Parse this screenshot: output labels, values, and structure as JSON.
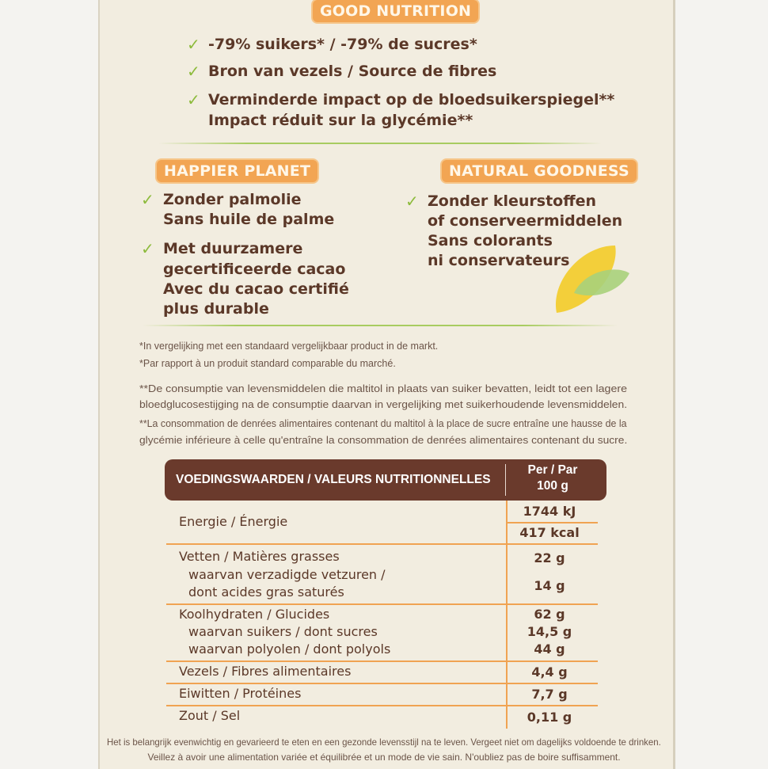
{
  "good_nutrition": {
    "title": "GOOD NUTRITION",
    "items": [
      [
        "-79% suikers* / -79% de sucres*"
      ],
      [
        "Bron van vezels / Source de fibres"
      ],
      [
        "Verminderde impact op de bloedsuikerspiegel**",
        "Impact réduit sur la glycémie**"
      ]
    ]
  },
  "happier_planet": {
    "title": "HAPPIER PLANET",
    "items": [
      [
        "Zonder palmolie",
        "Sans huile de palme"
      ],
      [
        "Met duurzamere",
        "gecertificeerde cacao",
        "Avec du cacao certifié",
        "plus durable"
      ]
    ]
  },
  "natural_goodness": {
    "title": "NATURAL GOODNESS",
    "items": [
      [
        "Zonder kleurstoffen",
        "of conserveermiddelen",
        "Sans colorants",
        "ni conservateurs"
      ]
    ]
  },
  "icons": {
    "check": "checkmark-icon",
    "leaf": "leaf-icon"
  },
  "colors": {
    "badge": "#f2a553",
    "check": "#8dbb3c",
    "brown": "#6a3a2c",
    "line": "#f0a352"
  },
  "footnotes": {
    "n1_nl": "*In vergelijking met een standaard vergelijkbaar product in de markt.",
    "n1_fr": "*Par rapport à un produit standard comparable du marché.",
    "n2_nl_1": "**De consumptie van levensmiddelen die maltitol in plaats van suiker bevatten, leidt tot een lagere",
    "n2_nl_2": "bloedglucosestijging na de consumptie daarvan in vergelijking met suikerhoudende levensmiddelen.",
    "n2_fr_1": "**La consommation de denrées alimentaires contenant du maltitol à la place de sucre entraîne une hausse de la",
    "n2_fr_2": "glycémie inférieure à celle qu'entraîne la consommation de denrées alimentaires contenant du sucre."
  },
  "table": {
    "header": "VOEDINGSWAARDEN / VALEURS NUTRITIONNELLES",
    "per_1": "Per / Par",
    "per_2": "100 g",
    "energy": {
      "label": "Energie / Énergie",
      "kj": "1744 kJ",
      "kcal": "417 kcal"
    },
    "fat": {
      "label": "Vetten / Matières grasses",
      "value": "22 g",
      "sub1": "waarvan verzadigde vetzuren /",
      "sub2": "dont acides gras saturés",
      "sub_value": "14 g"
    },
    "carbs": {
      "label": "Koolhydraten / Glucides",
      "value": "62 g",
      "sugars": "waarvan suikers / dont sucres",
      "sugars_value": "14,5 g",
      "polyols": "waarvan polyolen / dont polyols",
      "polyols_value": "44 g"
    },
    "fibre": {
      "label": "Vezels / Fibres alimentaires",
      "value": "4,4 g"
    },
    "protein": {
      "label": "Eiwitten / Protéines",
      "value": "7,7 g"
    },
    "salt": {
      "label": "Zout / Sel",
      "value": "0,11 g"
    }
  },
  "footer": {
    "nl": "Het is belangrijk evenwichtig en gevarieerd te eten en een gezonde levensstijl na te leven. Vergeet niet om dagelijks voldoende te drinken.",
    "fr": "Veillez à avoir une alimentation variée et équilibrée et un mode de vie sain. N'oubliez pas de boire suffisamment."
  }
}
